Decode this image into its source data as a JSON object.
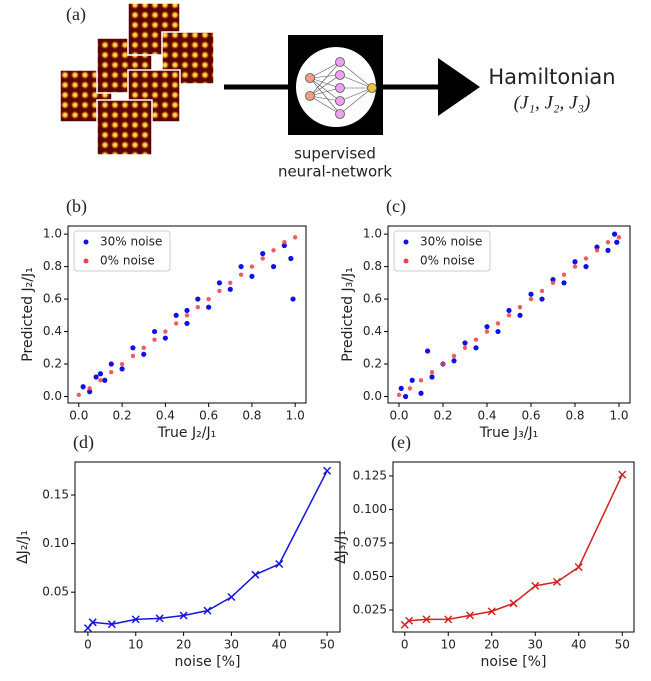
{
  "diagram": {
    "label": "(a)",
    "caption_line1": "supervised",
    "caption_line2": "neural-network",
    "output_title": "Hamiltonian",
    "output_params": "(J₁, J₂, J₃)"
  },
  "chart_data": [
    {
      "type": "scatter",
      "label": "(b)",
      "x_label": "True J₂/J₁",
      "y_label": "Predicted J₂/J₁",
      "legend": "upper left",
      "xlim": [
        -0.05,
        1.05
      ],
      "ylim": [
        -0.04,
        1.05
      ],
      "xticks": [
        {
          "value": 0,
          "label": "0.0"
        },
        0.2,
        0.4,
        0.6,
        0.8,
        {
          "value": 1,
          "label": "1.0"
        }
      ],
      "yticks": [
        {
          "value": 0,
          "label": "0.0"
        },
        0.2,
        0.4,
        0.6,
        0.8,
        {
          "value": 1,
          "label": "1.0"
        }
      ],
      "series": [
        {
          "name": "30% noise",
          "color": "#1010e8",
          "x": [
            0.02,
            0.05,
            0.08,
            0.1,
            0.12,
            0.15,
            0.2,
            0.25,
            0.3,
            0.35,
            0.4,
            0.45,
            0.5,
            0.5,
            0.55,
            0.6,
            0.65,
            0.7,
            0.75,
            0.8,
            0.85,
            0.9,
            0.95,
            0.98,
            0.99
          ],
          "y": [
            0.06,
            0.03,
            0.12,
            0.14,
            0.1,
            0.2,
            0.17,
            0.3,
            0.26,
            0.4,
            0.36,
            0.5,
            0.45,
            0.53,
            0.6,
            0.55,
            0.7,
            0.66,
            0.8,
            0.74,
            0.88,
            0.8,
            0.93,
            0.85,
            0.6
          ]
        },
        {
          "name": "0% noise",
          "color": "#f04040",
          "x": [
            0,
            0.05,
            0.1,
            0.15,
            0.2,
            0.25,
            0.3,
            0.35,
            0.4,
            0.45,
            0.5,
            0.55,
            0.6,
            0.65,
            0.7,
            0.75,
            0.8,
            0.85,
            0.9,
            0.95,
            1
          ],
          "y": [
            0.01,
            0.05,
            0.1,
            0.15,
            0.2,
            0.25,
            0.3,
            0.35,
            0.4,
            0.45,
            0.5,
            0.55,
            0.6,
            0.65,
            0.7,
            0.75,
            0.8,
            0.85,
            0.9,
            0.95,
            0.98
          ]
        }
      ]
    },
    {
      "type": "scatter",
      "label": "(c)",
      "x_label": "True J₃/J₁",
      "y_label": "Predicted J₃/J₁",
      "legend": "upper left",
      "xlim": [
        -0.05,
        1.05
      ],
      "ylim": [
        -0.04,
        1.05
      ],
      "xticks": [
        {
          "value": 0,
          "label": "0.0"
        },
        0.2,
        0.4,
        0.6,
        0.8,
        {
          "value": 1,
          "label": "1.0"
        }
      ],
      "yticks": [
        {
          "value": 0,
          "label": "0.0"
        },
        0.2,
        0.4,
        0.6,
        0.8,
        {
          "value": 1,
          "label": "1.0"
        }
      ],
      "series": [
        {
          "name": "30% noise",
          "color": "#1010e8",
          "x": [
            0.01,
            0.03,
            0.06,
            0.1,
            0.13,
            0.15,
            0.2,
            0.25,
            0.3,
            0.35,
            0.4,
            0.45,
            0.5,
            0.55,
            0.6,
            0.65,
            0.7,
            0.75,
            0.8,
            0.85,
            0.9,
            0.95,
            0.98,
            0.99
          ],
          "y": [
            0.05,
            0.0,
            0.1,
            0.02,
            0.28,
            0.12,
            0.2,
            0.22,
            0.33,
            0.3,
            0.43,
            0.4,
            0.53,
            0.5,
            0.63,
            0.6,
            0.72,
            0.7,
            0.83,
            0.8,
            0.92,
            0.9,
            1.0,
            0.95
          ]
        },
        {
          "name": "0% noise",
          "color": "#f04040",
          "x": [
            0,
            0.05,
            0.1,
            0.15,
            0.2,
            0.25,
            0.3,
            0.35,
            0.4,
            0.45,
            0.5,
            0.55,
            0.6,
            0.65,
            0.7,
            0.75,
            0.8,
            0.85,
            0.9,
            0.95,
            1
          ],
          "y": [
            0.01,
            0.05,
            0.1,
            0.15,
            0.2,
            0.25,
            0.3,
            0.35,
            0.4,
            0.45,
            0.5,
            0.55,
            0.6,
            0.65,
            0.7,
            0.75,
            0.8,
            0.85,
            0.9,
            0.95,
            0.98
          ]
        }
      ]
    },
    {
      "type": "line",
      "label": "(d)",
      "x_label": "noise [%]",
      "y_label": "ΔJ₂/J₁",
      "color": "#1515e0",
      "x": [
        0,
        1,
        5,
        10,
        15,
        20,
        25,
        30,
        35,
        40,
        50
      ],
      "values": [
        0.013,
        0.019,
        0.017,
        0.022,
        0.023,
        0.026,
        0.031,
        0.045,
        0.068,
        0.079,
        0.175
      ],
      "xlim": [
        -2.7,
        52.7
      ],
      "ylim": [
        0.009,
        0.184
      ],
      "xticks": [
        0,
        10,
        20,
        30,
        40,
        50
      ],
      "yticks": [
        0.05,
        {
          "value": 0.1,
          "label": "0.10"
        },
        0.15
      ]
    },
    {
      "type": "line",
      "label": "(e)",
      "x_label": "noise [%]",
      "y_label": "ΔJ₃/J₁",
      "color": "#d62020",
      "x": [
        0,
        1,
        5,
        10,
        15,
        20,
        25,
        30,
        35,
        40,
        50
      ],
      "values": [
        0.014,
        0.017,
        0.018,
        0.018,
        0.021,
        0.024,
        0.03,
        0.043,
        0.046,
        0.057,
        0.126
      ],
      "xlim": [
        -2.7,
        52.7
      ],
      "ylim": [
        0.0086,
        0.1354
      ],
      "xticks": [
        0,
        10,
        20,
        30,
        40,
        50
      ],
      "yticks": [
        0.025,
        {
          "value": 0.05,
          "label": "0.050"
        },
        {
          "value": 0.075,
          "label": "0.075"
        },
        {
          "value": 0.1,
          "label": "0.100"
        },
        0.125
      ]
    }
  ]
}
